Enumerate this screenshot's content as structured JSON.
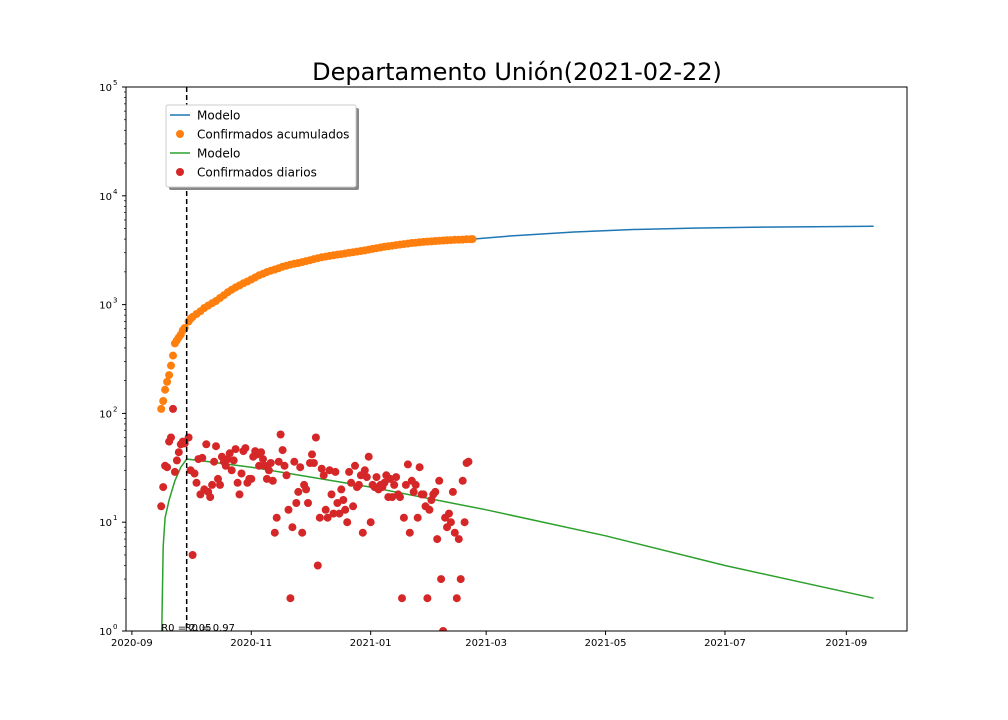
{
  "chart_data": {
    "type": "scatter",
    "title": "Departamento Unión(2021-02-22)",
    "xlabel": "",
    "ylabel": "",
    "yscale": "log",
    "ylim": [
      1,
      100000
    ],
    "xlim": [
      "2020-08-29",
      "2021-10-02"
    ],
    "grid": false,
    "legend_position": "top-left",
    "x_ticks": [
      "2020-09",
      "2020-11",
      "2021-01",
      "2021-03",
      "2021-05",
      "2021-07",
      "2021-09"
    ],
    "y_ticks": [
      {
        "value": 1,
        "base": "10",
        "exp": "0"
      },
      {
        "value": 10,
        "base": "10",
        "exp": "1"
      },
      {
        "value": 100,
        "base": "10",
        "exp": "2"
      },
      {
        "value": 1000,
        "base": "10",
        "exp": "3"
      },
      {
        "value": 10000,
        "base": "10",
        "exp": "4"
      },
      {
        "value": 100000,
        "base": "10",
        "exp": "5"
      }
    ],
    "vertical_line": {
      "x": "2020-09-29"
    },
    "annotations": [
      {
        "text": "R0 = 2.05",
        "x": "2020-09-16",
        "y": 1.09
      },
      {
        "text": "R0 = 0.97",
        "x": "2020-09-28",
        "y": 1.09
      }
    ],
    "legend": [
      {
        "label": "Modelo",
        "kind": "line",
        "color": "#1f77b4"
      },
      {
        "label": "Confirmados acumulados",
        "kind": "marker",
        "color": "#ff7f0e"
      },
      {
        "label": "Modelo",
        "kind": "line",
        "color": "#2ca02c"
      },
      {
        "label": "Confirmados diarios",
        "kind": "marker",
        "color": "#d62728"
      }
    ],
    "series": [
      {
        "name": "Modelo",
        "kind": "line",
        "color": "#1f77b4",
        "points": [
          [
            "2021-02-22",
            4000
          ],
          [
            "2021-03-15",
            4300
          ],
          [
            "2021-04-15",
            4650
          ],
          [
            "2021-05-15",
            4900
          ],
          [
            "2021-06-15",
            5050
          ],
          [
            "2021-07-15",
            5150
          ],
          [
            "2021-08-15",
            5200
          ],
          [
            "2021-09-15",
            5250
          ]
        ]
      },
      {
        "name": "Modelo",
        "kind": "line",
        "color": "#2ca02c",
        "points": [
          [
            "2020-09-16",
            0.5
          ],
          [
            "2020-09-17",
            6
          ],
          [
            "2020-09-18",
            11
          ],
          [
            "2020-09-20",
            16
          ],
          [
            "2020-09-23",
            24
          ],
          [
            "2020-09-26",
            32
          ],
          [
            "2020-09-29",
            38
          ],
          [
            "2020-10-05",
            37
          ],
          [
            "2020-11-01",
            32
          ],
          [
            "2021-01-01",
            21
          ],
          [
            "2021-03-01",
            13
          ],
          [
            "2021-05-01",
            7.5
          ],
          [
            "2021-07-01",
            4
          ],
          [
            "2021-09-15",
            2
          ]
        ]
      },
      {
        "name": "Confirmados acumulados",
        "kind": "marker",
        "color": "#ff7f0e",
        "points": [
          [
            "2020-09-16",
            110
          ],
          [
            "2020-09-17",
            130
          ],
          [
            "2020-09-18",
            165
          ],
          [
            "2020-09-19",
            195
          ],
          [
            "2020-09-20",
            225
          ],
          [
            "2020-09-21",
            275
          ],
          [
            "2020-09-22",
            340
          ],
          [
            "2020-09-23",
            440
          ],
          [
            "2020-09-24",
            470
          ],
          [
            "2020-09-25",
            500
          ],
          [
            "2020-09-26",
            530
          ],
          [
            "2020-09-27",
            580
          ],
          [
            "2020-09-28",
            610
          ],
          [
            "2020-09-30",
            700
          ],
          [
            "2020-10-01",
            740
          ],
          [
            "2020-10-02",
            770
          ],
          [
            "2020-10-04",
            820
          ],
          [
            "2020-10-06",
            870
          ],
          [
            "2020-10-08",
            930
          ],
          [
            "2020-10-10",
            980
          ],
          [
            "2020-10-12",
            1030
          ],
          [
            "2020-10-14",
            1080
          ],
          [
            "2020-10-16",
            1150
          ],
          [
            "2020-10-18",
            1220
          ],
          [
            "2020-10-20",
            1300
          ],
          [
            "2020-10-22",
            1370
          ],
          [
            "2020-10-24",
            1440
          ],
          [
            "2020-10-26",
            1500
          ],
          [
            "2020-10-28",
            1570
          ],
          [
            "2020-10-30",
            1630
          ],
          [
            "2020-11-01",
            1700
          ],
          [
            "2020-11-03",
            1780
          ],
          [
            "2020-11-05",
            1860
          ],
          [
            "2020-11-07",
            1920
          ],
          [
            "2020-11-09",
            1990
          ],
          [
            "2020-11-11",
            2050
          ],
          [
            "2020-11-13",
            2100
          ],
          [
            "2020-11-15",
            2160
          ],
          [
            "2020-11-17",
            2230
          ],
          [
            "2020-11-19",
            2280
          ],
          [
            "2020-11-21",
            2330
          ],
          [
            "2020-11-23",
            2370
          ],
          [
            "2020-11-25",
            2410
          ],
          [
            "2020-11-27",
            2460
          ],
          [
            "2020-11-29",
            2510
          ],
          [
            "2020-12-01",
            2560
          ],
          [
            "2020-12-03",
            2620
          ],
          [
            "2020-12-05",
            2670
          ],
          [
            "2020-12-07",
            2720
          ],
          [
            "2020-12-09",
            2760
          ],
          [
            "2020-12-11",
            2800
          ],
          [
            "2020-12-13",
            2840
          ],
          [
            "2020-12-15",
            2880
          ],
          [
            "2020-12-17",
            2910
          ],
          [
            "2020-12-19",
            2950
          ],
          [
            "2020-12-21",
            2990
          ],
          [
            "2020-12-23",
            3030
          ],
          [
            "2020-12-25",
            3070
          ],
          [
            "2020-12-27",
            3110
          ],
          [
            "2020-12-29",
            3150
          ],
          [
            "2020-12-31",
            3200
          ],
          [
            "2021-01-02",
            3250
          ],
          [
            "2021-01-04",
            3300
          ],
          [
            "2021-01-06",
            3350
          ],
          [
            "2021-01-08",
            3400
          ],
          [
            "2021-01-10",
            3440
          ],
          [
            "2021-01-12",
            3480
          ],
          [
            "2021-01-14",
            3520
          ],
          [
            "2021-01-16",
            3560
          ],
          [
            "2021-01-18",
            3600
          ],
          [
            "2021-01-20",
            3640
          ],
          [
            "2021-01-22",
            3680
          ],
          [
            "2021-01-24",
            3710
          ],
          [
            "2021-01-26",
            3740
          ],
          [
            "2021-01-28",
            3770
          ],
          [
            "2021-01-30",
            3790
          ],
          [
            "2021-02-01",
            3810
          ],
          [
            "2021-02-03",
            3840
          ],
          [
            "2021-02-05",
            3860
          ],
          [
            "2021-02-07",
            3880
          ],
          [
            "2021-02-09",
            3900
          ],
          [
            "2021-02-11",
            3920
          ],
          [
            "2021-02-13",
            3940
          ],
          [
            "2021-02-15",
            3950
          ],
          [
            "2021-02-17",
            3960
          ],
          [
            "2021-02-19",
            3980
          ],
          [
            "2021-02-21",
            3990
          ],
          [
            "2021-02-22",
            4000
          ]
        ]
      },
      {
        "name": "Confirmados diarios",
        "kind": "marker",
        "color": "#d62728",
        "points": [
          [
            "2020-09-16",
            14
          ],
          [
            "2020-09-17",
            21
          ],
          [
            "2020-09-18",
            33
          ],
          [
            "2020-09-19",
            32
          ],
          [
            "2020-09-20",
            55
          ],
          [
            "2020-09-21",
            60
          ],
          [
            "2020-09-22",
            110
          ],
          [
            "2020-09-23",
            29
          ],
          [
            "2020-09-24",
            37
          ],
          [
            "2020-09-25",
            44
          ],
          [
            "2020-09-26",
            52
          ],
          [
            "2020-09-27",
            55
          ],
          [
            "2020-09-28",
            53
          ],
          [
            "2020-09-30",
            60
          ],
          [
            "2020-10-01",
            30
          ],
          [
            "2020-10-02",
            5
          ],
          [
            "2020-10-03",
            28
          ],
          [
            "2020-10-04",
            23
          ],
          [
            "2020-10-05",
            38
          ],
          [
            "2020-10-06",
            18
          ],
          [
            "2020-10-07",
            39
          ],
          [
            "2020-10-08",
            20
          ],
          [
            "2020-10-09",
            52
          ],
          [
            "2020-10-10",
            19
          ],
          [
            "2020-10-11",
            17
          ],
          [
            "2020-10-12",
            22
          ],
          [
            "2020-10-13",
            36
          ],
          [
            "2020-10-14",
            50
          ],
          [
            "2020-10-15",
            25
          ],
          [
            "2020-10-16",
            22
          ],
          [
            "2020-10-17",
            40
          ],
          [
            "2020-10-18",
            36
          ],
          [
            "2020-10-19",
            33
          ],
          [
            "2020-10-20",
            38
          ],
          [
            "2020-10-21",
            43
          ],
          [
            "2020-10-22",
            30
          ],
          [
            "2020-10-23",
            37
          ],
          [
            "2020-10-24",
            47
          ],
          [
            "2020-10-25",
            23
          ],
          [
            "2020-10-26",
            18
          ],
          [
            "2020-10-27",
            28
          ],
          [
            "2020-10-28",
            45
          ],
          [
            "2020-10-29",
            48
          ],
          [
            "2020-10-30",
            23
          ],
          [
            "2020-10-31",
            25
          ],
          [
            "2020-11-01",
            25
          ],
          [
            "2020-11-02",
            40
          ],
          [
            "2020-11-03",
            45
          ],
          [
            "2020-11-04",
            42
          ],
          [
            "2020-11-05",
            33
          ],
          [
            "2020-11-06",
            44
          ],
          [
            "2020-11-07",
            38
          ],
          [
            "2020-11-08",
            33
          ],
          [
            "2020-11-09",
            25
          ],
          [
            "2020-11-10",
            30
          ],
          [
            "2020-11-11",
            35
          ],
          [
            "2020-11-12",
            24
          ],
          [
            "2020-11-13",
            8
          ],
          [
            "2020-11-14",
            11
          ],
          [
            "2020-11-15",
            36
          ],
          [
            "2020-11-16",
            64
          ],
          [
            "2020-11-17",
            46
          ],
          [
            "2020-11-18",
            33
          ],
          [
            "2020-11-19",
            27
          ],
          [
            "2020-11-20",
            13
          ],
          [
            "2020-11-21",
            2
          ],
          [
            "2020-11-22",
            9
          ],
          [
            "2020-11-23",
            36
          ],
          [
            "2020-11-24",
            15
          ],
          [
            "2020-11-25",
            19
          ],
          [
            "2020-11-26",
            32
          ],
          [
            "2020-11-27",
            8
          ],
          [
            "2020-11-28",
            22
          ],
          [
            "2020-11-29",
            20
          ],
          [
            "2020-11-30",
            15
          ],
          [
            "2020-12-01",
            35
          ],
          [
            "2020-12-02",
            42
          ],
          [
            "2020-12-03",
            35
          ],
          [
            "2020-12-04",
            60
          ],
          [
            "2020-12-05",
            4
          ],
          [
            "2020-12-06",
            11
          ],
          [
            "2020-12-07",
            31
          ],
          [
            "2020-12-08",
            27
          ],
          [
            "2020-12-09",
            13
          ],
          [
            "2020-12-10",
            11
          ],
          [
            "2020-12-11",
            30
          ],
          [
            "2020-12-12",
            18
          ],
          [
            "2020-12-13",
            12
          ],
          [
            "2020-12-14",
            29
          ],
          [
            "2020-12-15",
            15
          ],
          [
            "2020-12-16",
            12
          ],
          [
            "2020-12-17",
            20
          ],
          [
            "2020-12-18",
            16
          ],
          [
            "2020-12-19",
            13
          ],
          [
            "2020-12-20",
            10
          ],
          [
            "2020-12-21",
            29
          ],
          [
            "2020-12-22",
            23
          ],
          [
            "2020-12-23",
            14
          ],
          [
            "2020-12-24",
            33
          ],
          [
            "2020-12-25",
            21
          ],
          [
            "2020-12-26",
            22
          ],
          [
            "2020-12-27",
            27
          ],
          [
            "2020-12-28",
            8
          ],
          [
            "2020-12-29",
            30
          ],
          [
            "2020-12-30",
            26
          ],
          [
            "2020-12-31",
            40
          ],
          [
            "2021-01-01",
            10
          ],
          [
            "2021-01-02",
            22
          ],
          [
            "2021-01-03",
            21
          ],
          [
            "2021-01-04",
            26
          ],
          [
            "2021-01-05",
            20
          ],
          [
            "2021-01-06",
            22
          ],
          [
            "2021-01-07",
            21
          ],
          [
            "2021-01-08",
            23
          ],
          [
            "2021-01-09",
            27
          ],
          [
            "2021-01-10",
            17
          ],
          [
            "2021-01-11",
            25
          ],
          [
            "2021-01-12",
            17
          ],
          [
            "2021-01-13",
            22
          ],
          [
            "2021-01-14",
            26
          ],
          [
            "2021-01-15",
            18
          ],
          [
            "2021-01-16",
            17
          ],
          [
            "2021-01-17",
            2
          ],
          [
            "2021-01-18",
            11
          ],
          [
            "2021-01-19",
            22
          ],
          [
            "2021-01-20",
            34
          ],
          [
            "2021-01-21",
            8
          ],
          [
            "2021-01-22",
            24
          ],
          [
            "2021-01-23",
            19
          ],
          [
            "2021-01-24",
            22
          ],
          [
            "2021-01-25",
            11
          ],
          [
            "2021-01-26",
            32
          ],
          [
            "2021-01-27",
            18
          ],
          [
            "2021-01-28",
            18
          ],
          [
            "2021-01-29",
            14
          ],
          [
            "2021-01-30",
            2
          ],
          [
            "2021-01-31",
            13
          ],
          [
            "2021-02-01",
            16
          ],
          [
            "2021-02-02",
            18
          ],
          [
            "2021-02-03",
            19
          ],
          [
            "2021-02-04",
            7
          ],
          [
            "2021-02-05",
            24
          ],
          [
            "2021-02-06",
            3
          ],
          [
            "2021-02-07",
            1
          ],
          [
            "2021-02-08",
            11
          ],
          [
            "2021-02-09",
            9
          ],
          [
            "2021-02-10",
            12
          ],
          [
            "2021-02-11",
            10
          ],
          [
            "2021-02-12",
            19
          ],
          [
            "2021-02-13",
            8
          ],
          [
            "2021-02-14",
            2
          ],
          [
            "2021-02-15",
            7
          ],
          [
            "2021-02-16",
            3
          ],
          [
            "2021-02-17",
            24
          ],
          [
            "2021-02-18",
            10
          ],
          [
            "2021-02-19",
            35
          ],
          [
            "2021-02-20",
            36
          ]
        ]
      }
    ]
  }
}
